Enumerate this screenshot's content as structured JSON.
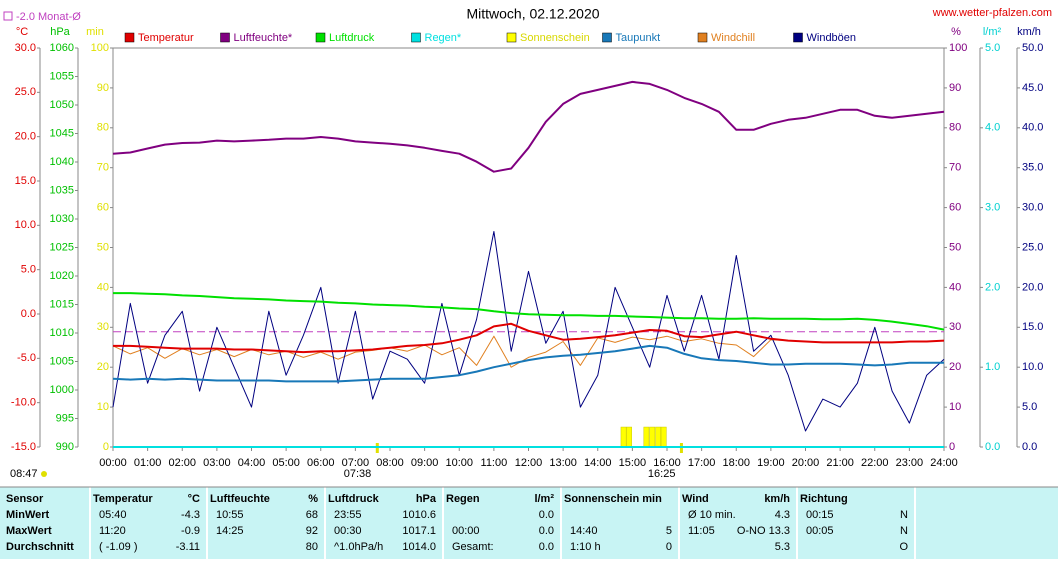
{
  "chart_data": {
    "type": "line",
    "title": "Mittwoch, 02.12.2020",
    "site": "www.wetter-pfalzen.com",
    "monthly_average": {
      "label": "-2.0 Monat-Ø",
      "value": -2.0,
      "axis": 0,
      "color": "#c040c0"
    },
    "sunrise": {
      "label": "07:38",
      "x": 7.633
    },
    "sunset": {
      "label": "16:25",
      "x": 16.417
    },
    "day_length": "08:47",
    "xlim": [
      0,
      24
    ],
    "xticks": [
      {
        "value": 0,
        "label": "00:00"
      },
      {
        "value": 1,
        "label": "01:00"
      },
      {
        "value": 2,
        "label": "02:00"
      },
      {
        "value": 3,
        "label": "03:00"
      },
      {
        "value": 4,
        "label": "04:00"
      },
      {
        "value": 5,
        "label": "05:00"
      },
      {
        "value": 6,
        "label": "06:00"
      },
      {
        "value": 7,
        "label": "07:00"
      },
      {
        "value": 8,
        "label": "08:00"
      },
      {
        "value": 9,
        "label": "09:00"
      },
      {
        "value": 10,
        "label": "10:00"
      },
      {
        "value": 11,
        "label": "11:00"
      },
      {
        "value": 12,
        "label": "12:00"
      },
      {
        "value": 13,
        "label": "13:00"
      },
      {
        "value": 14,
        "label": "14:00"
      },
      {
        "value": 15,
        "label": "15:00"
      },
      {
        "value": 16,
        "label": "16:00"
      },
      {
        "value": 17,
        "label": "17:00"
      },
      {
        "value": 18,
        "label": "18:00"
      },
      {
        "value": 19,
        "label": "19:00"
      },
      {
        "value": 20,
        "label": "20:00"
      },
      {
        "value": 21,
        "label": "21:00"
      },
      {
        "value": 22,
        "label": "22:00"
      },
      {
        "value": 23,
        "label": "23:00"
      },
      {
        "value": 24,
        "label": "24:00"
      }
    ],
    "axes": [
      {
        "label": "°C",
        "side": "left",
        "color": "#e00000",
        "lim": [
          -15,
          30
        ],
        "ticks": [
          {
            "value": 30,
            "label": "30.0"
          },
          {
            "value": 25,
            "label": "25.0"
          },
          {
            "value": 20,
            "label": "20.0"
          },
          {
            "value": 15,
            "label": "15.0"
          },
          {
            "value": 10,
            "label": "10.0"
          },
          {
            "value": 5,
            "label": "5.0"
          },
          {
            "value": 0,
            "label": "0.0"
          },
          {
            "value": -5,
            "label": "-5.0"
          },
          {
            "value": -10,
            "label": "-10.0"
          },
          {
            "value": -15,
            "label": "-15.0"
          }
        ]
      },
      {
        "label": "hPa",
        "side": "left",
        "color": "#00c000",
        "lim": [
          990,
          1060
        ],
        "ticks": [
          1060,
          1055,
          1050,
          1045,
          1040,
          1035,
          1030,
          1025,
          1020,
          1015,
          1010,
          1005,
          1000,
          995,
          990
        ]
      },
      {
        "label": "min",
        "side": "left",
        "color": "#e0e000",
        "lim": [
          0,
          100
        ],
        "ticks": [
          100,
          90,
          80,
          70,
          60,
          50,
          40,
          30,
          20,
          10,
          0
        ]
      },
      {
        "label": "%",
        "side": "right",
        "color": "#800080",
        "lim": [
          0,
          100
        ],
        "ticks": [
          100,
          90,
          80,
          70,
          60,
          50,
          40,
          30,
          20,
          10,
          0
        ]
      },
      {
        "label": "l/m²",
        "side": "right",
        "color": "#00d0d0",
        "lim": [
          0,
          5
        ],
        "ticks": [
          {
            "value": 5,
            "label": "5.0"
          },
          {
            "value": 4,
            "label": "4.0"
          },
          {
            "value": 3,
            "label": "3.0"
          },
          {
            "value": 2,
            "label": "2.0"
          },
          {
            "value": 1,
            "label": "1.0"
          },
          {
            "value": 0,
            "label": "0.0"
          }
        ]
      },
      {
        "label": "km/h",
        "side": "right",
        "color": "#000080",
        "lim": [
          0,
          50
        ],
        "ticks": [
          {
            "value": 50,
            "label": "50.0"
          },
          {
            "value": 45,
            "label": "45.0"
          },
          {
            "value": 40,
            "label": "40.0"
          },
          {
            "value": 35,
            "label": "35.0"
          },
          {
            "value": 30,
            "label": "30.0"
          },
          {
            "value": 25,
            "label": "25.0"
          },
          {
            "value": 20,
            "label": "20.0"
          },
          {
            "value": 15,
            "label": "15.0"
          },
          {
            "value": 10,
            "label": "10.0"
          },
          {
            "value": 5,
            "label": "5.0"
          },
          {
            "value": 0,
            "label": "0.0"
          }
        ]
      }
    ],
    "x": [
      0,
      0.5,
      1,
      1.5,
      2,
      2.5,
      3,
      3.5,
      4,
      4.5,
      5,
      5.5,
      6,
      6.5,
      7,
      7.5,
      8,
      8.5,
      9,
      9.5,
      10,
      10.5,
      11,
      11.5,
      12,
      12.5,
      13,
      13.5,
      14,
      14.5,
      15,
      15.5,
      16,
      16.5,
      17,
      17.5,
      18,
      18.5,
      19,
      19.5,
      20,
      20.5,
      21,
      21.5,
      22,
      22.5,
      23,
      23.5,
      24
    ],
    "series": [
      {
        "name": "Temperatur",
        "color": "#e00000",
        "axis": 0,
        "kind": "line",
        "width": 2,
        "values": [
          -3.6,
          -3.6,
          -3.7,
          -3.8,
          -3.9,
          -3.9,
          -3.9,
          -4.0,
          -4.0,
          -4.1,
          -4.2,
          -4.3,
          -4.2,
          -4.2,
          -4.1,
          -4.0,
          -3.8,
          -3.6,
          -3.5,
          -3.3,
          -2.9,
          -2.4,
          -1.4,
          -1.1,
          -1.9,
          -2.4,
          -2.9,
          -2.8,
          -2.6,
          -2.4,
          -2.1,
          -1.8,
          -1.9,
          -2.5,
          -2.6,
          -2.3,
          -2.0,
          -2.4,
          -2.8,
          -3.0,
          -3.1,
          -3.2,
          -3.2,
          -3.2,
          -3.2,
          -3.2,
          -3.1,
          -3.1,
          -3.0
        ]
      },
      {
        "name": "Luftfeuchte*",
        "color": "#800080",
        "axis": 3,
        "kind": "line",
        "width": 2,
        "values": [
          73.5,
          73.8,
          74.8,
          75.8,
          76.2,
          76.3,
          76.8,
          76.6,
          76.8,
          77.0,
          77.3,
          77.3,
          77.7,
          77.3,
          76.6,
          76.3,
          76.0,
          75.6,
          75.0,
          74.2,
          73.5,
          71.5,
          69.0,
          69.8,
          75.0,
          81.5,
          86.0,
          88.5,
          89.5,
          90.5,
          91.5,
          91.0,
          89.5,
          87.5,
          86.0,
          84.0,
          79.5,
          79.5,
          81.0,
          82.0,
          82.5,
          83.5,
          84.5,
          84.5,
          83.0,
          82.5,
          83.0,
          83.5,
          84.0
        ]
      },
      {
        "name": "Luftdruck",
        "color": "#00e000",
        "axis": 1,
        "kind": "line",
        "width": 2,
        "values": [
          1017.0,
          1017.0,
          1016.9,
          1016.8,
          1016.6,
          1016.5,
          1016.3,
          1016.1,
          1016.0,
          1015.9,
          1015.7,
          1015.6,
          1015.5,
          1015.3,
          1015.2,
          1015.0,
          1014.9,
          1014.8,
          1014.6,
          1014.5,
          1014.3,
          1014.2,
          1013.8,
          1013.5,
          1013.3,
          1013.2,
          1013.1,
          1013.1,
          1013.0,
          1013.0,
          1012.9,
          1012.8,
          1012.7,
          1012.6,
          1012.6,
          1012.5,
          1012.5,
          1012.6,
          1012.5,
          1012.5,
          1012.5,
          1012.4,
          1012.4,
          1012.5,
          1012.3,
          1012.0,
          1011.6,
          1011.2,
          1010.6
        ]
      },
      {
        "name": "Regen*",
        "color": "#00e0e0",
        "axis": 4,
        "kind": "line",
        "width": 2,
        "x": [
          0,
          24
        ],
        "values": [
          0,
          0
        ]
      },
      {
        "name": "Sonnenschein",
        "color": "#ffff00",
        "axis": 2,
        "kind": "bar",
        "x": [
          14.67,
          14.83,
          15.33,
          15.5,
          15.67,
          15.83
        ],
        "values": [
          5,
          5,
          5,
          5,
          5,
          5
        ]
      },
      {
        "name": "Taupunkt",
        "color": "#1878b8",
        "axis": 0,
        "kind": "line",
        "width": 2,
        "values": [
          -7.3,
          -7.4,
          -7.3,
          -7.4,
          -7.3,
          -7.4,
          -7.5,
          -7.5,
          -7.5,
          -7.5,
          -7.6,
          -7.6,
          -7.6,
          -7.6,
          -7.5,
          -7.4,
          -7.3,
          -7.3,
          -7.3,
          -7.1,
          -6.9,
          -6.5,
          -6.0,
          -5.6,
          -5.2,
          -4.9,
          -4.7,
          -4.6,
          -4.4,
          -4.2,
          -3.9,
          -3.6,
          -3.8,
          -4.5,
          -5.0,
          -5.2,
          -5.3,
          -5.5,
          -5.7,
          -5.7,
          -5.6,
          -5.6,
          -5.6,
          -5.7,
          -5.8,
          -5.7,
          -5.5,
          -5.5,
          -5.5
        ]
      },
      {
        "name": "Windchill",
        "color": "#e08020",
        "axis": 0,
        "kind": "line",
        "width": 1,
        "values": [
          -3.6,
          -4.5,
          -3.8,
          -5.0,
          -3.9,
          -4.6,
          -4.0,
          -4.8,
          -4.0,
          -4.6,
          -4.2,
          -4.9,
          -4.3,
          -5.1,
          -4.3,
          -4.1,
          -3.8,
          -4.2,
          -3.5,
          -4.6,
          -3.8,
          -5.8,
          -2.5,
          -6.0,
          -4.9,
          -4.3,
          -3.1,
          -5.8,
          -2.7,
          -3.2,
          -2.6,
          -2.9,
          -2.5,
          -3.1,
          -2.8,
          -3.3,
          -3.5,
          -4.8,
          -2.9,
          -3.0,
          -3.1,
          -3.2,
          -3.2,
          -3.2,
          -3.2,
          -3.2,
          -3.1,
          -3.1,
          -3.0
        ]
      },
      {
        "name": "Windböen",
        "color": "#000080",
        "axis": 5,
        "kind": "line",
        "width": 1,
        "values": [
          5,
          18,
          8,
          14,
          17,
          7,
          15,
          10,
          5,
          17,
          9,
          14,
          20,
          8,
          17,
          6,
          12,
          11,
          8,
          18,
          9,
          16,
          27,
          12,
          22,
          13,
          17,
          5,
          9,
          20,
          15,
          10,
          19,
          12,
          19,
          11,
          24,
          12,
          14,
          9,
          2,
          6,
          5,
          8,
          15,
          7,
          3,
          9,
          11
        ]
      }
    ]
  },
  "table": {
    "groups": [
      {
        "header": "Sensor",
        "rows": [
          {
            "left": "MinWert"
          },
          {
            "left": "MaxWert"
          },
          {
            "left": "Durchschnitt"
          }
        ]
      },
      {
        "header": "Temperatur",
        "unit": "°C",
        "rows": [
          {
            "left": "05:40",
            "right": "-4.3"
          },
          {
            "left": "11:20",
            "right": "-0.9"
          },
          {
            "left": "( -1.09 )",
            "right": "-3.11"
          }
        ]
      },
      {
        "header": "Luftfeuchte",
        "unit": "%",
        "rows": [
          {
            "left": "10:55",
            "right": "68"
          },
          {
            "left": "14:25",
            "right": "92"
          },
          {
            "right": "80"
          }
        ]
      },
      {
        "header": "Luftdruck",
        "unit": "hPa",
        "rows": [
          {
            "left": "23:55",
            "right": "1010.6"
          },
          {
            "left": "00:30",
            "right": "1017.1"
          },
          {
            "left": "^1.0hPa/h",
            "right": "1014.0"
          }
        ]
      },
      {
        "header": "Regen",
        "unit": "l/m²",
        "rows": [
          {
            "right": "0.0"
          },
          {
            "left": "00:00",
            "right": "0.0"
          },
          {
            "left": "Gesamt:",
            "right": "0.0"
          }
        ]
      },
      {
        "header": "Sonnenschein min",
        "rows": [
          {},
          {
            "left": "14:40",
            "right": "5"
          },
          {
            "left": "1:10 h",
            "right": "0"
          }
        ]
      },
      {
        "header": "Wind",
        "unit": "km/h",
        "rows": [
          {
            "left": "Ø 10 min.",
            "right": "4.3"
          },
          {
            "left": "11:05",
            "right": "O-NO 13.3"
          },
          {
            "right": "5.3"
          }
        ]
      },
      {
        "header": "Richtung",
        "rows": [
          {
            "left": "00:15",
            "right": "N"
          },
          {
            "left": "00:05",
            "right": "N"
          },
          {
            "right": "O"
          }
        ]
      }
    ]
  }
}
